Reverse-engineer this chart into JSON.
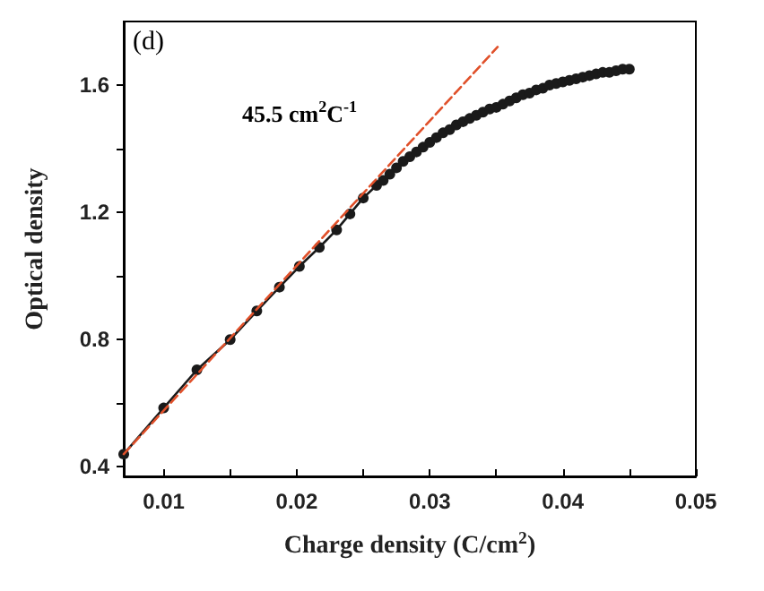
{
  "chart_data": {
    "type": "line",
    "xlabel": "Charge density (C/cm$^{2}$)",
    "ylabel": "Optical density",
    "annotations": [
      "(d)",
      "45.5 cm$^{2}$C$^{-1}$"
    ],
    "xlim": [
      0.007,
      0.05
    ],
    "xticks": [
      0.01,
      {
        "value": 0.015,
        "label": null
      },
      0.02,
      {
        "value": 0.025,
        "label": null
      },
      0.03,
      {
        "value": 0.035,
        "label": null
      },
      0.04,
      {
        "value": 0.045,
        "label": null
      },
      0.05
    ],
    "ylim": [
      0.37,
      1.8
    ],
    "yticks": [
      0.4,
      {
        "value": 0.6,
        "label": null
      },
      0.8,
      {
        "value": 1.0,
        "label": null
      },
      1.2,
      {
        "value": 1.4,
        "label": null
      },
      1.6
    ],
    "grid": false,
    "series": [
      {
        "color": "#1a1a1a",
        "marker": "circle",
        "line_style": "solid",
        "x": [
          0.007,
          0.01,
          0.0125,
          0.015,
          0.017,
          0.0187,
          0.0202,
          0.0217,
          0.023,
          0.024,
          0.025,
          0.026,
          0.0265,
          0.027,
          0.0275,
          0.028,
          0.0285,
          0.029,
          0.0295,
          0.03,
          0.0305,
          0.031,
          0.0315,
          0.032,
          0.0325,
          0.033,
          0.0335,
          0.034,
          0.0345,
          0.035,
          0.0355,
          0.036,
          0.0365,
          0.037,
          0.0375,
          0.038,
          0.0385,
          0.039,
          0.0395,
          0.04,
          0.0405,
          0.041,
          0.0415,
          0.042,
          0.0425,
          0.043,
          0.0435,
          0.044,
          0.0445,
          0.045
        ],
        "values": [
          0.44,
          0.585,
          0.705,
          0.8,
          0.89,
          0.965,
          1.03,
          1.09,
          1.145,
          1.195,
          1.245,
          1.285,
          1.3,
          1.32,
          1.34,
          1.36,
          1.375,
          1.39,
          1.405,
          1.42,
          1.435,
          1.45,
          1.46,
          1.475,
          1.485,
          1.495,
          1.505,
          1.515,
          1.525,
          1.53,
          1.54,
          1.55,
          1.56,
          1.57,
          1.575,
          1.585,
          1.59,
          1.6,
          1.605,
          1.61,
          1.615,
          1.62,
          1.625,
          1.63,
          1.635,
          1.64,
          1.64,
          1.645,
          1.65,
          1.65
        ]
      },
      {
        "color": "#e0502a",
        "marker": "none",
        "line_style": "dashed",
        "x": [
          0.007,
          0.0351
        ],
        "values": [
          0.44,
          1.72
        ]
      }
    ]
  }
}
